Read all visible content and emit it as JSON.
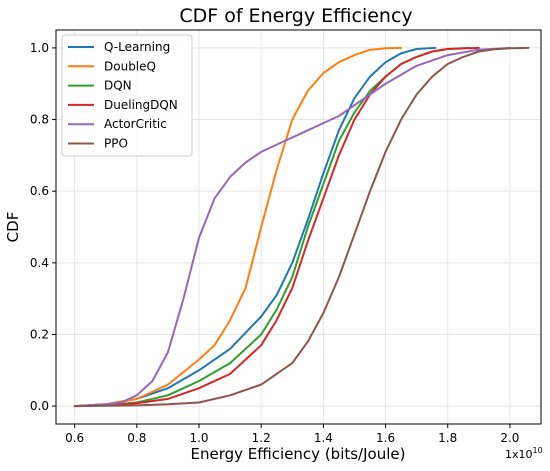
{
  "chart_data": {
    "type": "line",
    "title": "CDF of Energy Efficiency",
    "xlabel": "Energy Efficiency (bits/Joule)",
    "ylabel": "CDF",
    "x_offset_label": "1x10",
    "x_offset_exponent": "10",
    "xlim": [
      0.54,
      2.1
    ],
    "ylim": [
      -0.05,
      1.05
    ],
    "x_ticks": [
      0.6,
      0.8,
      1.0,
      1.2,
      1.4,
      1.6,
      1.8,
      2.0
    ],
    "x_tick_labels": [
      "0.6",
      "0.8",
      "1.0",
      "1.2",
      "1.4",
      "1.6",
      "1.8",
      "2.0"
    ],
    "y_ticks": [
      0.0,
      0.2,
      0.4,
      0.6,
      0.8,
      1.0
    ],
    "y_tick_labels": [
      "0.0",
      "0.2",
      "0.4",
      "0.6",
      "0.8",
      "1.0"
    ],
    "grid": true,
    "legend_position": "top-left",
    "series": [
      {
        "name": "Q-Learning",
        "color": "#1f77b4",
        "x": [
          0.6,
          0.7,
          0.8,
          0.9,
          1.0,
          1.1,
          1.2,
          1.25,
          1.3,
          1.35,
          1.4,
          1.45,
          1.5,
          1.55,
          1.6,
          1.65,
          1.7,
          1.76
        ],
        "y": [
          0.0,
          0.005,
          0.02,
          0.05,
          0.1,
          0.16,
          0.25,
          0.31,
          0.4,
          0.52,
          0.65,
          0.77,
          0.86,
          0.92,
          0.96,
          0.985,
          0.997,
          1.0
        ]
      },
      {
        "name": "DoubleQ",
        "color": "#ff7f0e",
        "x": [
          0.6,
          0.7,
          0.8,
          0.9,
          1.0,
          1.05,
          1.1,
          1.15,
          1.2,
          1.25,
          1.3,
          1.35,
          1.4,
          1.45,
          1.5,
          1.55,
          1.6,
          1.65
        ],
        "y": [
          0.0,
          0.005,
          0.02,
          0.06,
          0.13,
          0.17,
          0.24,
          0.33,
          0.5,
          0.66,
          0.8,
          0.88,
          0.93,
          0.96,
          0.98,
          0.995,
          0.999,
          1.0
        ]
      },
      {
        "name": "DQN",
        "color": "#2ca02c",
        "x": [
          0.6,
          0.7,
          0.8,
          0.9,
          1.0,
          1.1,
          1.2,
          1.25,
          1.3,
          1.35,
          1.4,
          1.45,
          1.5,
          1.55,
          1.6,
          1.65,
          1.7,
          1.75,
          1.8,
          1.87
        ],
        "y": [
          0.0,
          0.003,
          0.01,
          0.03,
          0.07,
          0.12,
          0.2,
          0.27,
          0.36,
          0.5,
          0.62,
          0.74,
          0.82,
          0.88,
          0.92,
          0.955,
          0.975,
          0.99,
          0.997,
          1.0
        ]
      },
      {
        "name": "DuelingDQN",
        "color": "#d62728",
        "x": [
          0.6,
          0.7,
          0.8,
          0.9,
          1.0,
          1.1,
          1.2,
          1.25,
          1.3,
          1.35,
          1.4,
          1.45,
          1.5,
          1.55,
          1.6,
          1.65,
          1.7,
          1.75,
          1.8,
          1.9
        ],
        "y": [
          0.0,
          0.002,
          0.008,
          0.02,
          0.05,
          0.09,
          0.17,
          0.24,
          0.33,
          0.46,
          0.58,
          0.7,
          0.8,
          0.87,
          0.92,
          0.955,
          0.975,
          0.99,
          0.997,
          1.0
        ]
      },
      {
        "name": "ActorCritic",
        "color": "#9467bd",
        "x": [
          0.6,
          0.7,
          0.75,
          0.8,
          0.85,
          0.9,
          0.95,
          1.0,
          1.05,
          1.1,
          1.15,
          1.2,
          1.25,
          1.3,
          1.35,
          1.4,
          1.45,
          1.5,
          1.55,
          1.6,
          1.7,
          1.8,
          1.9,
          2.0
        ],
        "y": [
          0.0,
          0.005,
          0.01,
          0.03,
          0.07,
          0.15,
          0.3,
          0.47,
          0.58,
          0.64,
          0.68,
          0.71,
          0.73,
          0.75,
          0.77,
          0.79,
          0.81,
          0.84,
          0.87,
          0.9,
          0.95,
          0.98,
          0.995,
          1.0
        ]
      },
      {
        "name": "PPO",
        "color": "#8c564b",
        "x": [
          0.6,
          0.8,
          0.9,
          1.0,
          1.1,
          1.2,
          1.3,
          1.35,
          1.4,
          1.45,
          1.5,
          1.55,
          1.6,
          1.65,
          1.7,
          1.75,
          1.8,
          1.85,
          1.9,
          1.95,
          2.0,
          2.06
        ],
        "y": [
          0.0,
          0.002,
          0.005,
          0.01,
          0.03,
          0.06,
          0.12,
          0.18,
          0.26,
          0.36,
          0.48,
          0.6,
          0.71,
          0.8,
          0.87,
          0.92,
          0.955,
          0.975,
          0.99,
          0.996,
          0.999,
          1.0
        ]
      }
    ]
  }
}
